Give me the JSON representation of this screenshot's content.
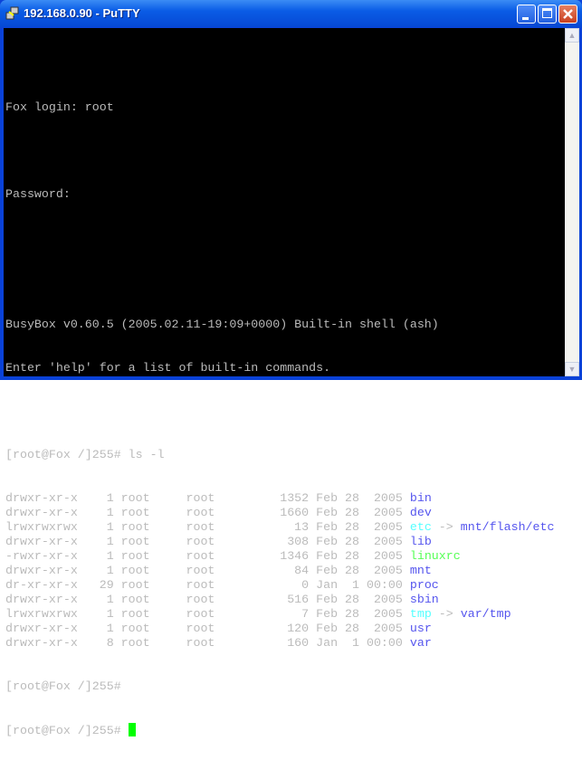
{
  "window": {
    "title": "192.168.0.90 - PuTTY"
  },
  "colors": {
    "text": "#bbbbbb",
    "directory": "#5555ee",
    "symlink": "#55ffff",
    "executable": "#55ff55",
    "cursor": "#00ff00",
    "background": "#000000"
  },
  "terminal": {
    "lines": [
      {
        "text": ""
      },
      {
        "text": "Fox login: root"
      },
      {
        "text": ""
      },
      {
        "text": "Password:"
      },
      {
        "text": ""
      },
      {
        "text": ""
      },
      {
        "text": "BusyBox v0.60.5 (2005.02.11-19:09+0000) Built-in shell (ash)"
      },
      {
        "text": "Enter 'help' for a list of built-in commands."
      },
      {
        "text": ""
      },
      {
        "text": "[root@Fox /]255# ls -l"
      }
    ],
    "listing": [
      {
        "meta": "drwxr-xr-x    1 root     root         1352 Feb 28  2005 ",
        "name": "bin",
        "type": "dir"
      },
      {
        "meta": "drwxr-xr-x    1 root     root         1660 Feb 28  2005 ",
        "name": "dev",
        "type": "dir"
      },
      {
        "meta": "lrwxrwxrwx    1 root     root           13 Feb 28  2005 ",
        "name": "etc",
        "type": "lnk",
        "arrow": " -> ",
        "target": "mnt/flash/etc"
      },
      {
        "meta": "drwxr-xr-x    1 root     root          308 Feb 28  2005 ",
        "name": "lib",
        "type": "dir"
      },
      {
        "meta": "-rwxr-xr-x    1 root     root         1346 Feb 28  2005 ",
        "name": "linuxrc",
        "type": "exe"
      },
      {
        "meta": "drwxr-xr-x    1 root     root           84 Feb 28  2005 ",
        "name": "mnt",
        "type": "dir"
      },
      {
        "meta": "dr-xr-xr-x   29 root     root            0 Jan  1 00:00 ",
        "name": "proc",
        "type": "dir"
      },
      {
        "meta": "drwxr-xr-x    1 root     root          516 Feb 28  2005 ",
        "name": "sbin",
        "type": "dir"
      },
      {
        "meta": "lrwxrwxrwx    1 root     root            7 Feb 28  2005 ",
        "name": "tmp",
        "type": "lnk",
        "arrow": " -> ",
        "target": "var/tmp"
      },
      {
        "meta": "drwxr-xr-x    1 root     root          120 Feb 28  2005 ",
        "name": "usr",
        "type": "dir"
      },
      {
        "meta": "drwxr-xr-x    8 root     root          160 Jan  1 00:00 ",
        "name": "var",
        "type": "dir"
      }
    ],
    "prompts": [
      "[root@Fox /]255#",
      "[root@Fox /]255# "
    ]
  }
}
